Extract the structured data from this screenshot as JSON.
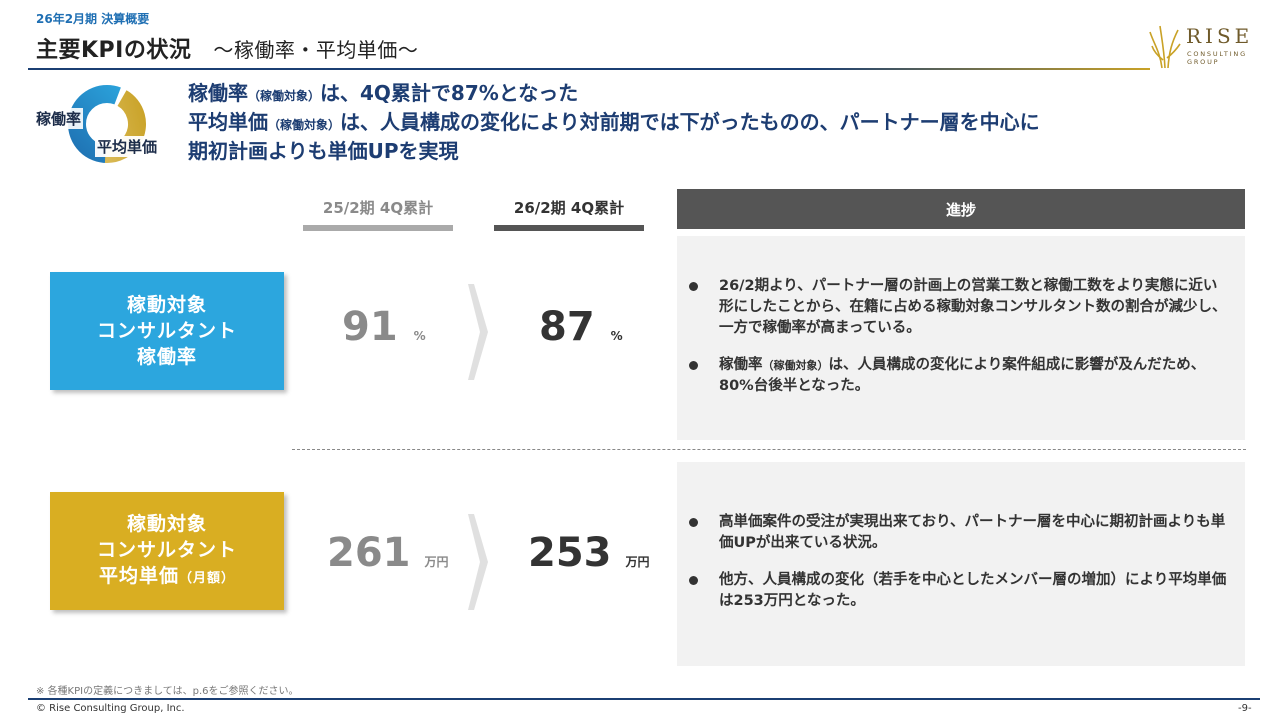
{
  "header": {
    "kicker": "26年2月期 決算概要",
    "title": "主要KPIの状況",
    "subtitle": "～稼働率・平均単価～"
  },
  "logo": {
    "name": "RISE",
    "line1": "CONSULTING",
    "line2": "GROUP",
    "color": "#6f5a2a"
  },
  "summary": {
    "icon_label_1": "稼働率",
    "icon_label_2": "平均単価",
    "line1_a": "稼働率",
    "line1_small": "（稼働対象）",
    "line1_b": "は、4Q累計で87%となった",
    "line2_a": "平均単価",
    "line2_small": "（稼働対象）",
    "line2_b": "は、人員構成の変化により対前期では下がったものの、パートナー層を中心に",
    "line3": "期初計画よりも単価UPを実現"
  },
  "columns": {
    "prev": "25/2期 4Q累計",
    "curr": "26/2期 4Q累計",
    "progress": "進捗"
  },
  "kpi_rows": [
    {
      "label_l1": "稼動対象",
      "label_l2": "コンサルタント",
      "label_l3": "稼働率",
      "label_l3_small": "",
      "prev_value": "91",
      "prev_unit": "%",
      "curr_value": "87",
      "curr_unit": "%",
      "bullets": [
        {
          "a": "26/2期より、パートナー層の計画上の営業工数と稼働工数をより実態に近い形にしたことから、在籍に占める稼動対象コンサルタント数の割合が減少し、一方で稼働率が高まっている。"
        },
        {
          "a": "稼働率",
          "small": "（稼働対象）",
          "b": "は、人員構成の変化により案件組成に影響が及んだため、80%台後半となった。"
        }
      ]
    },
    {
      "label_l1": "稼動対象",
      "label_l2": "コンサルタント",
      "label_l3": "平均単価",
      "label_l3_small": "（月額）",
      "prev_value": "261",
      "prev_unit": "万円",
      "curr_value": "253",
      "curr_unit": "万円",
      "bullets": [
        {
          "a": "高単価案件の受注が実現出来ており、パートナー層を中心に期初計画よりも単価UPが出来ている状況。"
        },
        {
          "a": "他方、人員構成の変化（若手を中心としたメンバー層の増加）により平均単価は253万円となった。"
        }
      ]
    }
  ],
  "colors": {
    "kpi1_bg": "#2ca6de",
    "kpi2_bg": "#d9ae22",
    "prev_text": "#8a8a8a",
    "curr_text": "#333333",
    "prev_bar": "#aaaaaa",
    "curr_bar": "#555555"
  },
  "footer": {
    "note": "※ 各種KPIの定義につきましては、p.6をご参照ください。",
    "copyright": "© Rise Consulting Group, Inc.",
    "page": "-9-"
  }
}
